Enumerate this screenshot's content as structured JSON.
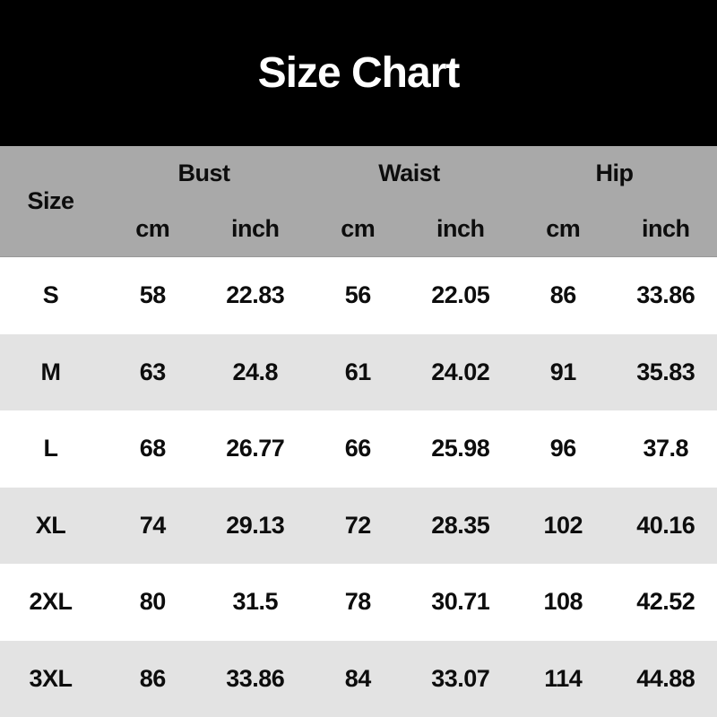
{
  "title": "Size Chart",
  "header": {
    "size_label": "Size",
    "groups": [
      {
        "label": "Bust",
        "units": [
          "cm",
          "inch"
        ]
      },
      {
        "label": "Waist",
        "units": [
          "cm",
          "inch"
        ]
      },
      {
        "label": "Hip",
        "units": [
          "cm",
          "inch"
        ]
      }
    ]
  },
  "chart_data": {
    "type": "table",
    "title": "Size Chart",
    "columns": [
      "Size",
      "Bust cm",
      "Bust inch",
      "Waist cm",
      "Waist inch",
      "Hip cm",
      "Hip inch"
    ],
    "rows": [
      [
        "S",
        "58",
        "22.83",
        "56",
        "22.05",
        "86",
        "33.86"
      ],
      [
        "M",
        "63",
        "24.8",
        "61",
        "24.02",
        "91",
        "35.83"
      ],
      [
        "L",
        "68",
        "26.77",
        "66",
        "25.98",
        "96",
        "37.8"
      ],
      [
        "XL",
        "74",
        "29.13",
        "72",
        "28.35",
        "102",
        "40.16"
      ],
      [
        "2XL",
        "80",
        "31.5",
        "78",
        "30.71",
        "108",
        "42.52"
      ],
      [
        "3XL",
        "86",
        "33.86",
        "84",
        "33.07",
        "114",
        "44.88"
      ]
    ]
  },
  "colors": {
    "title_band_bg": "#000000",
    "title_text": "#ffffff",
    "header_bg": "#a9a9a9",
    "row_bg": "#ffffff",
    "row_alt_bg": "#e3e3e3",
    "text": "#0d0d0d"
  }
}
